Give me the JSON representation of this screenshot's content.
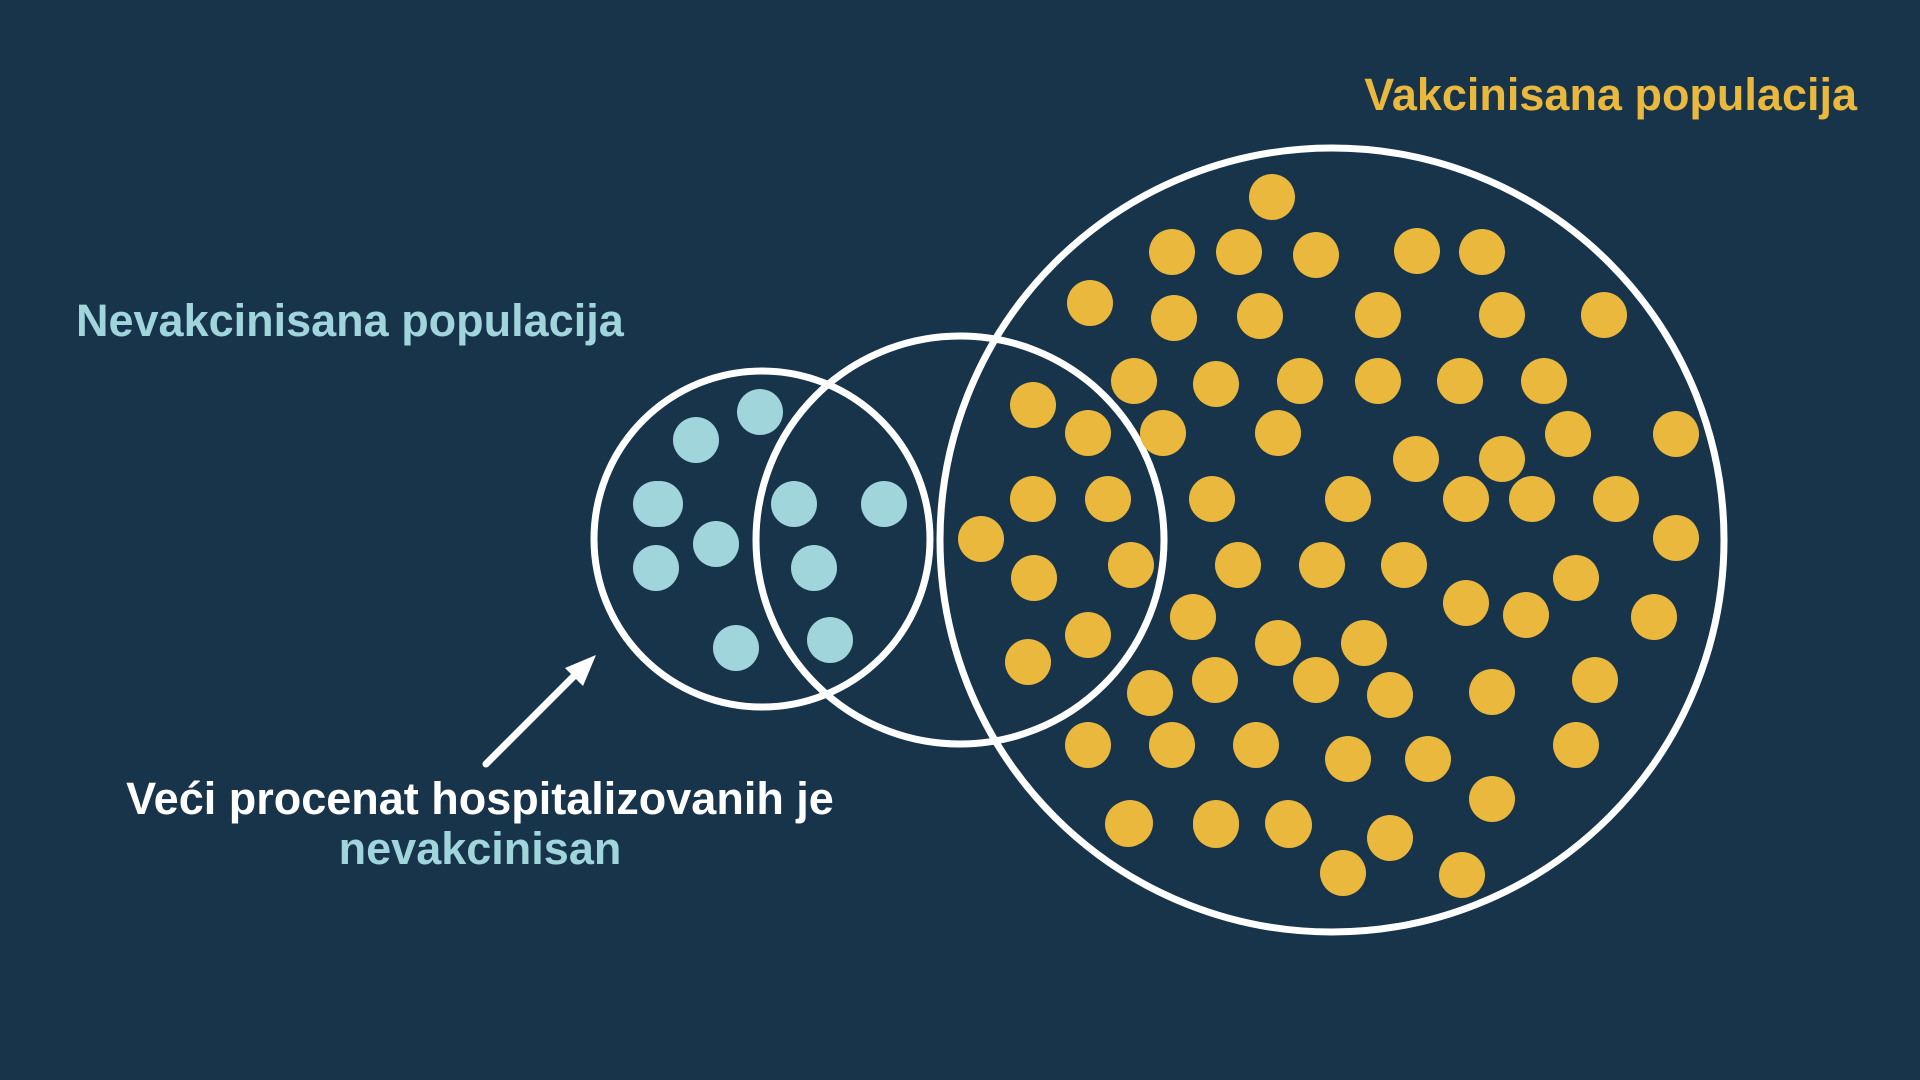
{
  "labels": {
    "vaccinated_population": "Vakcinisana populacija",
    "unvaccinated_population": "Nevakcinisana populacija",
    "callout_line1": "Veći procenat hospitalizovanih je",
    "callout_line2": "nevakcinisan"
  },
  "colors": {
    "background": "#17344a",
    "outline": "#ffffff",
    "vaccinated": "#eab83d",
    "unvaccinated": "#a0d5dc"
  },
  "counts": {
    "unvaccinated_dots": 11,
    "vaccinated_dots": 76
  }
}
